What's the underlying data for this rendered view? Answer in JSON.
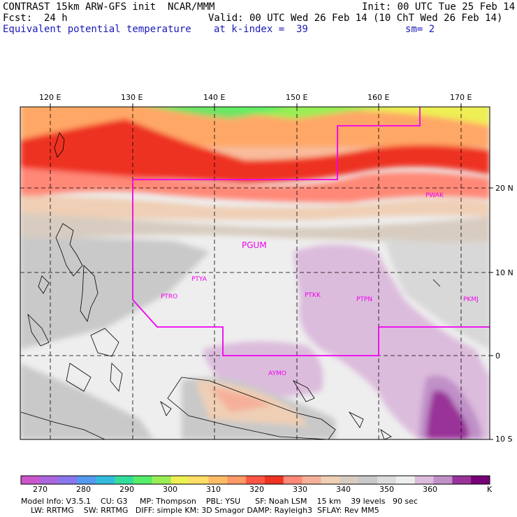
{
  "header": {
    "left1": "CONTRAST 15km ARW-GFS init  NCAR/MMM",
    "left2": "Fcst:  24 h",
    "left3": "Equivalent potential temperature",
    "init": "Init: 00 UTC Tue 25 Feb 14",
    "valid": "Valid: 00 UTC Wed 26 Feb 14 (10 ChT Wed 26 Feb 14)",
    "kindex": "at k-index =  39",
    "smooth": "sm= 2"
  },
  "map": {
    "lon_labels": [
      "120 E",
      "130 E",
      "140 E",
      "150 E",
      "160 E",
      "170 E"
    ],
    "lat_labels": [
      "20 N",
      "10 N",
      "0",
      "10 S"
    ],
    "stations": [
      "PGUM",
      "PTYA",
      "PTRO",
      "PTKK",
      "PTPN",
      "PKMJ",
      "PWAK",
      "AYMO"
    ]
  },
  "colorbar": {
    "colors": [
      "#cc55cc",
      "#aa66dd",
      "#8877ee",
      "#5599ee",
      "#33bbdd",
      "#33dd99",
      "#55ee66",
      "#99ee55",
      "#eeee55",
      "#ffdd66",
      "#ffbb66",
      "#ff9966",
      "#ff5544",
      "#ee3322",
      "#ff8877",
      "#f5b09a",
      "#efcfb5",
      "#d8ccc0",
      "#c9c9c9",
      "#dcdcdc",
      "#eeeeee",
      "#dcbcdc",
      "#c090c8",
      "#993399",
      "#770077"
    ],
    "ticks": [
      "270",
      "280",
      "290",
      "300",
      "310",
      "320",
      "330",
      "340",
      "350",
      "360"
    ],
    "unit": "K"
  },
  "model_info": {
    "line1": "Model Info: V3.5.1    CU: G3     MP: Thompson    PBL: YSU      SF: Noah LSM    15 km    39 levels   90 sec",
    "line2": "    LW: RRTMG    SW: RRTMG   DIFF: simple KM: 3D Smagor DAMP: Rayleigh3  SFLAY: Rev MM5"
  }
}
